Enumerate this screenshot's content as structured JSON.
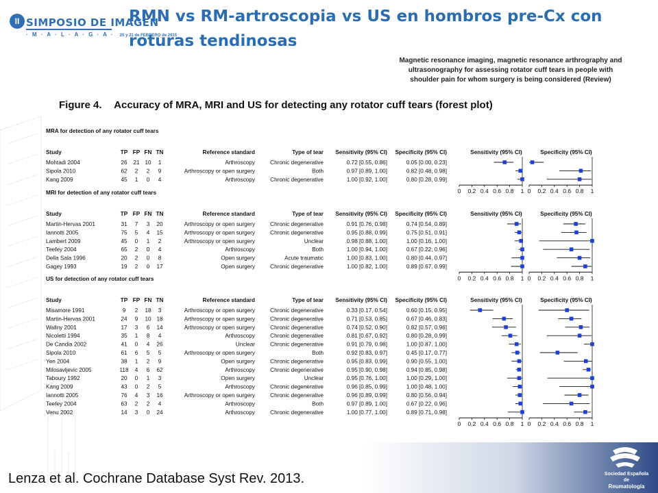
{
  "logo": {
    "edition": "II",
    "name": "SIMPOSIO DE IMAGEN",
    "city": "· M · A · L · A · G · A ·",
    "dates": "20 y 21 de FEBRERO de 2015"
  },
  "slide_title": "RMN vs RM-artroscopia vs US en hombros pre-Cx con roturas tendinosas",
  "review_title": "Magnetic resonance imaging, magnetic resonance arthrography and ultrasonography for assessing rotator cuff tears in people with shoulder pain for whom surgery is being considered (Review)",
  "figure": {
    "number": "Figure 4.",
    "caption": "Accuracy of MRA, MRI and US for detecting any rotator cuff tears (forest plot)"
  },
  "chart_data": {
    "type": "forest",
    "columns": [
      "Study",
      "TP",
      "FP",
      "FN",
      "TN",
      "Reference standard",
      "Type of tear",
      "Sensitivity (95% CI)",
      "Specificity (95% CI)"
    ],
    "plot_headers": [
      "Sensitivity (95% CI)",
      "Specificity (95% CI)"
    ],
    "axis_ticks": [
      "0",
      "0.2",
      "0.4",
      "0.6",
      "0.8",
      "1"
    ],
    "xlim": [
      0,
      1
    ],
    "groups": [
      {
        "label": "MRA for detection of any rotator cuff tears",
        "rows": [
          {
            "study": "Mohtadi 2004",
            "tp": "26",
            "fp": "21",
            "fn": "10",
            "tn": "1",
            "ref": "Arthroscopy",
            "tear": "Chronic degenerative",
            "sens": "0.72 [0.55, 0.86]",
            "spec": "0.05 [0.00, 0.23]",
            "sv": 0.72,
            "sl": 0.55,
            "su": 0.86,
            "pv": 0.05,
            "pl": 0.0,
            "pu": 0.23
          },
          {
            "study": "Sipola 2010",
            "tp": "62",
            "fp": "2",
            "fn": "2",
            "tn": "9",
            "ref": "Arthroscopy or open surgery",
            "tear": "Both",
            "sens": "0.97 [0.89, 1.00]",
            "spec": "0.82 [0.48, 0.98]",
            "sv": 0.97,
            "sl": 0.89,
            "su": 1.0,
            "pv": 0.82,
            "pl": 0.48,
            "pu": 0.98
          },
          {
            "study": "Kang 2009",
            "tp": "45",
            "fp": "1",
            "fn": "0",
            "tn": "4",
            "ref": "Arthroscopy",
            "tear": "Chronic degenerative",
            "sens": "1.00 [0.92, 1.00]",
            "spec": "0.80 [0.28, 0.99]",
            "sv": 1.0,
            "sl": 0.92,
            "su": 1.0,
            "pv": 0.8,
            "pl": 0.28,
            "pu": 0.99
          }
        ]
      },
      {
        "label": "MRI for detection of any rotator cuff tears",
        "rows": [
          {
            "study": "Martin-Hervas 2001",
            "tp": "31",
            "fp": "7",
            "fn": "3",
            "tn": "20",
            "ref": "Arthroscopy or open surgery",
            "tear": "Chronic degenerative",
            "sens": "0.91 [0.76, 0.98]",
            "spec": "0.74 [0.54, 0.89]",
            "sv": 0.91,
            "sl": 0.76,
            "su": 0.98,
            "pv": 0.74,
            "pl": 0.54,
            "pu": 0.89
          },
          {
            "study": "Iannotti 2005",
            "tp": "75",
            "fp": "5",
            "fn": "4",
            "tn": "15",
            "ref": "Arthroscopy or open surgery",
            "tear": "Chronic degenerative",
            "sens": "0.95 [0.88, 0.99]",
            "spec": "0.75 [0.51, 0.91]",
            "sv": 0.95,
            "sl": 0.88,
            "su": 0.99,
            "pv": 0.75,
            "pl": 0.51,
            "pu": 0.91
          },
          {
            "study": "Lambert 2009",
            "tp": "45",
            "fp": "0",
            "fn": "1",
            "tn": "2",
            "ref": "Arthroscopy or open surgery",
            "tear": "Unclear",
            "sens": "0.98 [0.88, 1.00]",
            "spec": "1.00 [0.16, 1.00]",
            "sv": 0.98,
            "sl": 0.88,
            "su": 1.0,
            "pv": 1.0,
            "pl": 0.16,
            "pu": 1.0
          },
          {
            "study": "Teefey 2004",
            "tp": "65",
            "fp": "2",
            "fn": "0",
            "tn": "4",
            "ref": "Arthroscopy",
            "tear": "Both",
            "sens": "1.00 [0.94, 1.00]",
            "spec": "0.67 [0.22, 0.96]",
            "sv": 1.0,
            "sl": 0.94,
            "su": 1.0,
            "pv": 0.67,
            "pl": 0.22,
            "pu": 0.96
          },
          {
            "study": "Della Sala 1996",
            "tp": "20",
            "fp": "2",
            "fn": "0",
            "tn": "8",
            "ref": "Open surgery",
            "tear": "Acute traumatic",
            "sens": "1.00 [0.83, 1.00]",
            "spec": "0.80 [0.44, 0.97]",
            "sv": 1.0,
            "sl": 0.83,
            "su": 1.0,
            "pv": 0.8,
            "pl": 0.44,
            "pu": 0.97
          },
          {
            "study": "Gagey 1993",
            "tp": "19",
            "fp": "2",
            "fn": "0",
            "tn": "17",
            "ref": "Open surgery",
            "tear": "Chronic degenerative",
            "sens": "1.00 [0.82, 1.00]",
            "spec": "0.89 [0.67, 0.99]",
            "sv": 1.0,
            "sl": 0.82,
            "su": 1.0,
            "pv": 0.89,
            "pl": 0.67,
            "pu": 0.99
          }
        ]
      },
      {
        "label": "US for detection of any rotator cuff tears",
        "rows": [
          {
            "study": "Misamore 1991",
            "tp": "9",
            "fp": "2",
            "fn": "18",
            "tn": "3",
            "ref": "Arthroscopy or open surgery",
            "tear": "Chronic degenerative",
            "sens": "0.33 [0.17, 0.54]",
            "spec": "0.60 [0.15, 0.95]",
            "sv": 0.33,
            "sl": 0.17,
            "su": 0.54,
            "pv": 0.6,
            "pl": 0.15,
            "pu": 0.95
          },
          {
            "study": "Martin-Hervas 2001",
            "tp": "24",
            "fp": "9",
            "fn": "10",
            "tn": "18",
            "ref": "Arthroscopy or open surgery",
            "tear": "Chronic degenerative",
            "sens": "0.71 [0.53, 0.85]",
            "spec": "0.67 [0.46, 0.83]",
            "sv": 0.71,
            "sl": 0.53,
            "su": 0.85,
            "pv": 0.67,
            "pl": 0.46,
            "pu": 0.83
          },
          {
            "study": "Wallny 2001",
            "tp": "17",
            "fp": "3",
            "fn": "6",
            "tn": "14",
            "ref": "Arthroscopy or open surgery",
            "tear": "Chronic degenerative",
            "sens": "0.74 [0.52, 0.90]",
            "spec": "0.82 [0.57, 0.96]",
            "sv": 0.74,
            "sl": 0.52,
            "su": 0.9,
            "pv": 0.82,
            "pl": 0.57,
            "pu": 0.96
          },
          {
            "study": "Nicoletti 1994",
            "tp": "35",
            "fp": "1",
            "fn": "8",
            "tn": "4",
            "ref": "Arthroscopy",
            "tear": "Chronic degenerative",
            "sens": "0.81 [0.67, 0.92]",
            "spec": "0.80 [0.28, 0.99]",
            "sv": 0.81,
            "sl": 0.67,
            "su": 0.92,
            "pv": 0.8,
            "pl": 0.28,
            "pu": 0.99
          },
          {
            "study": "De Candia 2002",
            "tp": "41",
            "fp": "0",
            "fn": "4",
            "tn": "26",
            "ref": "Unclear",
            "tear": "Chronic degenerative",
            "sens": "0.91 [0.79, 0.98]",
            "spec": "1.00 [0.87, 1.00]",
            "sv": 0.91,
            "sl": 0.79,
            "su": 0.98,
            "pv": 1.0,
            "pl": 0.87,
            "pu": 1.0
          },
          {
            "study": "Sipola 2010",
            "tp": "61",
            "fp": "6",
            "fn": "5",
            "tn": "5",
            "ref": "Arthroscopy or open surgery",
            "tear": "Both",
            "sens": "0.92 [0.83, 0.97]",
            "spec": "0.45 [0.17, 0.77]",
            "sv": 0.92,
            "sl": 0.83,
            "su": 0.97,
            "pv": 0.45,
            "pl": 0.17,
            "pu": 0.77
          },
          {
            "study": "Yen 2004",
            "tp": "38",
            "fp": "1",
            "fn": "2",
            "tn": "9",
            "ref": "Open surgery",
            "tear": "Chronic degenerative",
            "sens": "0.95 [0.83, 0.99]",
            "spec": "0.90 [0.55, 1.00]",
            "sv": 0.95,
            "sl": 0.83,
            "su": 0.99,
            "pv": 0.9,
            "pl": 0.55,
            "pu": 1.0
          },
          {
            "study": "Milosavljevic 2005",
            "tp": "118",
            "fp": "4",
            "fn": "6",
            "tn": "62",
            "ref": "Arthroscopy",
            "tear": "Chronic degenerative",
            "sens": "0.95 [0.90, 0.98]",
            "spec": "0.94 [0.85, 0.98]",
            "sv": 0.95,
            "sl": 0.9,
            "su": 0.98,
            "pv": 0.94,
            "pl": 0.85,
            "pu": 0.98
          },
          {
            "study": "Taboury 1992",
            "tp": "20",
            "fp": "0",
            "fn": "1",
            "tn": "3",
            "ref": "Open surgery",
            "tear": "Unclear",
            "sens": "0.95 [0.76, 1.00]",
            "spec": "1.00 [0.29, 1.00]",
            "sv": 0.95,
            "sl": 0.76,
            "su": 1.0,
            "pv": 1.0,
            "pl": 0.29,
            "pu": 1.0
          },
          {
            "study": "Kang 2009",
            "tp": "43",
            "fp": "0",
            "fn": "2",
            "tn": "5",
            "ref": "Arthroscopy",
            "tear": "Chronic degenerative",
            "sens": "0.96 [0.85, 0.99]",
            "spec": "1.00 [0.48, 1.00]",
            "sv": 0.96,
            "sl": 0.85,
            "su": 0.99,
            "pv": 1.0,
            "pl": 0.48,
            "pu": 1.0
          },
          {
            "study": "Iannotti 2005",
            "tp": "76",
            "fp": "4",
            "fn": "3",
            "tn": "16",
            "ref": "Arthroscopy or open surgery",
            "tear": "Chronic degenerative",
            "sens": "0.96 [0.89, 0.99]",
            "spec": "0.80 [0.56, 0.94]",
            "sv": 0.96,
            "sl": 0.89,
            "su": 0.99,
            "pv": 0.8,
            "pl": 0.56,
            "pu": 0.94
          },
          {
            "study": "Teefey 2004",
            "tp": "63",
            "fp": "2",
            "fn": "2",
            "tn": "4",
            "ref": "Arthroscopy",
            "tear": "Both",
            "sens": "0.97 [0.89, 1.00]",
            "spec": "0.67 [0.22, 0.96]",
            "sv": 0.97,
            "sl": 0.89,
            "su": 1.0,
            "pv": 0.67,
            "pl": 0.22,
            "pu": 0.96
          },
          {
            "study": "Venu 2002",
            "tp": "14",
            "fp": "3",
            "fn": "0",
            "tn": "24",
            "ref": "Arthroscopy",
            "tear": "Chronic degenerative",
            "sens": "1.00 [0.77, 1.00]",
            "spec": "0.89 [0.71, 0.98]",
            "sv": 1.0,
            "sl": 0.77,
            "su": 1.0,
            "pv": 0.89,
            "pl": 0.71,
            "pu": 0.98
          }
        ]
      }
    ]
  },
  "citation": "Lenza et al. Cochrane Database Syst Rev. 2013.",
  "ser_logo": {
    "line1": "Sociedad Española",
    "line2": "de",
    "line3": "Reumatología"
  },
  "colors": {
    "title_blue": "#2c6db0",
    "marker_blue": "#1f3fd6",
    "logo_blue": "#2f6fb3"
  }
}
